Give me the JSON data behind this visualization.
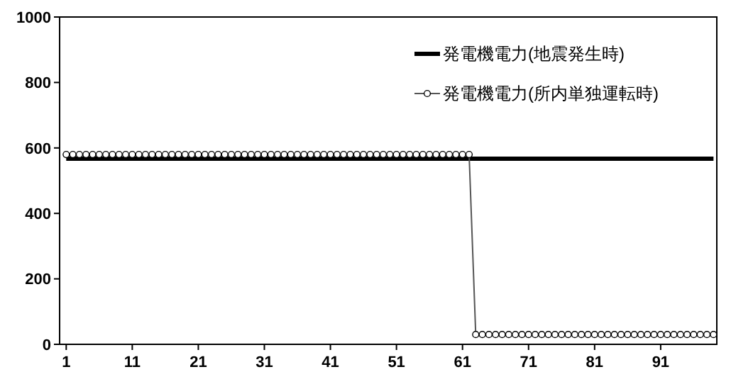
{
  "chart_data": {
    "type": "line",
    "x": [
      1,
      2,
      3,
      4,
      5,
      6,
      7,
      8,
      9,
      10,
      11,
      12,
      13,
      14,
      15,
      16,
      17,
      18,
      19,
      20,
      21,
      22,
      23,
      24,
      25,
      26,
      27,
      28,
      29,
      30,
      31,
      32,
      33,
      34,
      35,
      36,
      37,
      38,
      39,
      40,
      41,
      42,
      43,
      44,
      45,
      46,
      47,
      48,
      49,
      50,
      51,
      52,
      53,
      54,
      55,
      56,
      57,
      58,
      59,
      60,
      61,
      62,
      63,
      64,
      65,
      66,
      67,
      68,
      69,
      70,
      71,
      72,
      73,
      74,
      75,
      76,
      77,
      78,
      79,
      80,
      81,
      82,
      83,
      84,
      85,
      86,
      87,
      88,
      89,
      90,
      91,
      92,
      93,
      94,
      95,
      96,
      97,
      98,
      99
    ],
    "xlim": [
      0,
      99.5
    ],
    "xticks": [
      1,
      11,
      21,
      31,
      41,
      51,
      61,
      71,
      81,
      91
    ],
    "ylim": [
      0,
      1000
    ],
    "yticks": [
      0,
      200,
      400,
      600,
      800,
      1000
    ],
    "grid": false,
    "legend": "top right",
    "series": [
      {
        "name": "発電機電力(地震発生時)",
        "color": "#000000",
        "marker": "none",
        "values": [
          567,
          567,
          567,
          567,
          567,
          567,
          567,
          567,
          567,
          567,
          567,
          567,
          567,
          567,
          567,
          567,
          567,
          567,
          567,
          567,
          567,
          567,
          567,
          567,
          567,
          567,
          567,
          567,
          567,
          567,
          567,
          567,
          567,
          567,
          567,
          567,
          567,
          567,
          567,
          567,
          567,
          567,
          567,
          567,
          567,
          567,
          567,
          567,
          567,
          567,
          567,
          567,
          567,
          567,
          567,
          567,
          567,
          567,
          567,
          567,
          567,
          567,
          567,
          567,
          567,
          567,
          567,
          567,
          567,
          567,
          567,
          567,
          567,
          567,
          567,
          567,
          567,
          567,
          567,
          567,
          567,
          567,
          567,
          567,
          567,
          567,
          567,
          567,
          567,
          567,
          567,
          567,
          567,
          567,
          567,
          567,
          567,
          567,
          567
        ]
      },
      {
        "name": "発電機電力(所内単独運転時)",
        "color": "#555555",
        "marker": "circle",
        "values": [
          580,
          580,
          580,
          580,
          580,
          580,
          580,
          580,
          580,
          580,
          580,
          580,
          580,
          580,
          580,
          580,
          580,
          580,
          580,
          580,
          580,
          580,
          580,
          580,
          580,
          580,
          580,
          580,
          580,
          580,
          580,
          580,
          580,
          580,
          580,
          580,
          580,
          580,
          580,
          580,
          580,
          580,
          580,
          580,
          580,
          580,
          580,
          580,
          580,
          580,
          580,
          580,
          580,
          580,
          580,
          580,
          580,
          580,
          580,
          580,
          580,
          580,
          30,
          30,
          30,
          30,
          30,
          30,
          30,
          30,
          30,
          30,
          30,
          30,
          30,
          30,
          30,
          30,
          30,
          30,
          30,
          30,
          30,
          30,
          30,
          30,
          30,
          30,
          30,
          30,
          30,
          30,
          30,
          30,
          30,
          30,
          30,
          30,
          30
        ]
      }
    ]
  }
}
